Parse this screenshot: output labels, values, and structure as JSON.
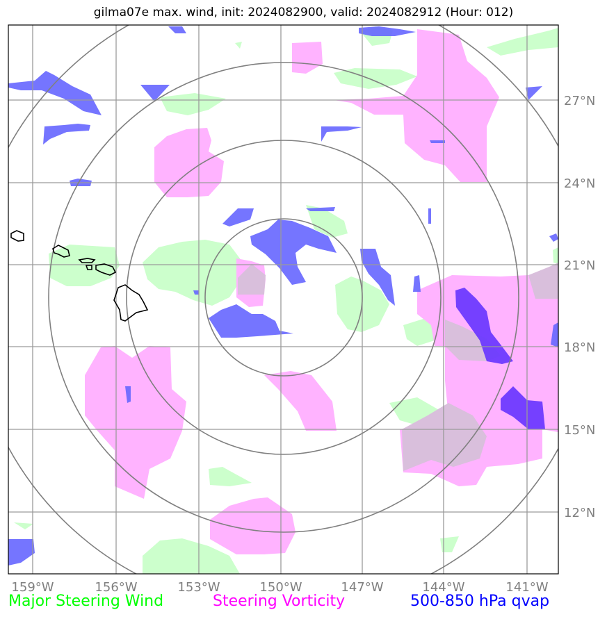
{
  "title": "gilma07e max. wind, init: 2024082900, valid: 2024082912 (Hour: 012)",
  "map": {
    "lon_labels": [
      "159°W",
      "156°W",
      "153°W",
      "150°W",
      "147°W",
      "144°W",
      "141°W"
    ],
    "lat_labels": [
      "27°N",
      "24°N",
      "21°N",
      "18°N",
      "15°N",
      "12°N"
    ],
    "range_ring_count": 4,
    "colors": {
      "wind_fill": "#ccffcc",
      "vorticity_fill": "#ffb3ff",
      "overlap_fill": "#d9bfdc",
      "qvap_fill": "#6666ff",
      "qvap_strong_fill": "#6633ff",
      "rings": "#808080",
      "grid": "#9a9a9a",
      "coast": "#000000"
    }
  },
  "legend": {
    "wind": "Major Steering Wind",
    "vorticity": "Steering Vorticity",
    "qvap": "500-850 hPa qvap"
  }
}
